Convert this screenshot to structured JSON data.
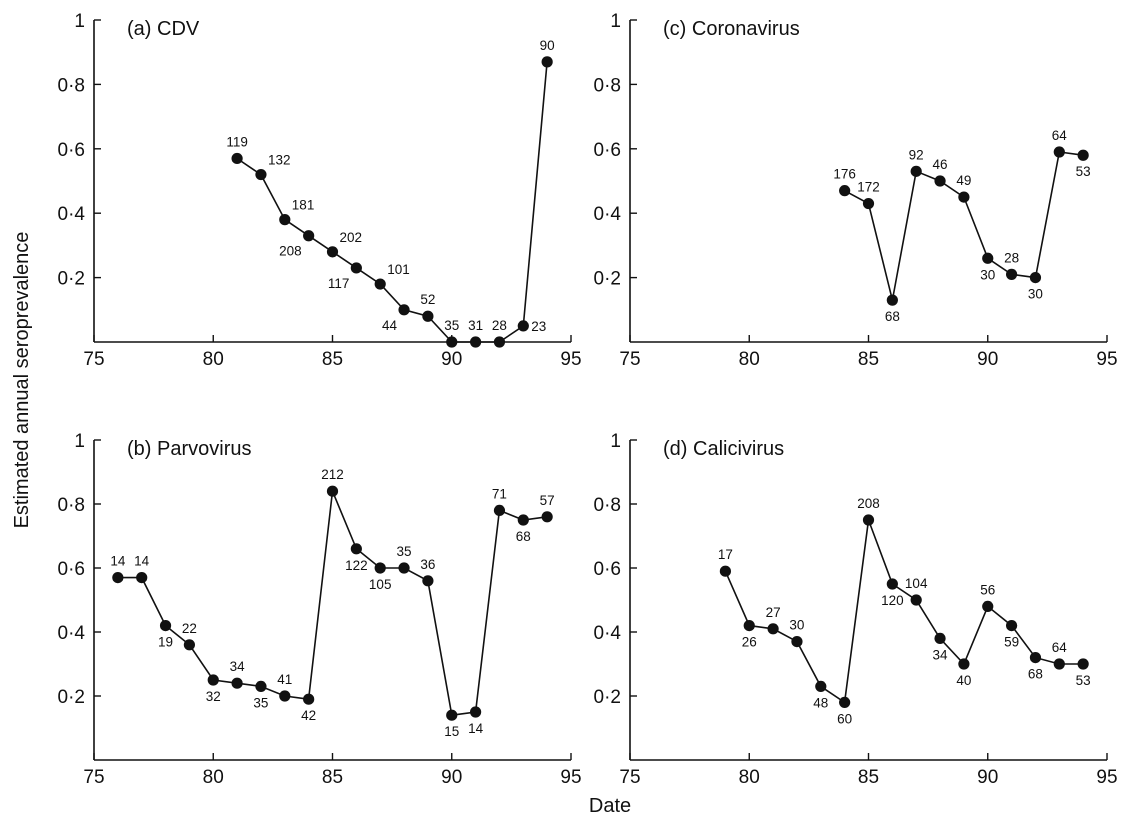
{
  "figure": {
    "ylabel": "Estimated annual seroprevalence",
    "xlabel": "Date"
  },
  "chart_data": [
    {
      "type": "line",
      "title": "(a) CDV",
      "xlim": [
        75,
        95
      ],
      "ylim": [
        0,
        1
      ],
      "x_ticks": [
        75,
        80,
        85,
        90,
        95
      ],
      "y_ticks": [
        0.2,
        0.4,
        0.6,
        0.8,
        1
      ],
      "y_tick_labels": [
        "0·2",
        "0·4",
        "0·6",
        "0·8",
        "1"
      ],
      "x": [
        81,
        82,
        83,
        84,
        85,
        86,
        87,
        88,
        89,
        90,
        91,
        92,
        93,
        94
      ],
      "y": [
        0.57,
        0.52,
        0.38,
        0.33,
        0.28,
        0.23,
        0.18,
        0.1,
        0.08,
        0.0,
        0.0,
        0.0,
        0.05,
        0.87
      ],
      "point_labels": [
        "119",
        "132",
        "181",
        "208",
        "202",
        "117",
        "101",
        "44",
        "52",
        "35",
        "31",
        "28",
        "23",
        "90"
      ],
      "label_pos": [
        "above",
        "above-right",
        "above-right",
        "below-left",
        "above-right",
        "below-left",
        "above-right",
        "below-left",
        "above",
        "above",
        "above",
        "above",
        "right",
        "above"
      ]
    },
    {
      "type": "line",
      "title": "(b) Parvovirus",
      "xlim": [
        75,
        95
      ],
      "ylim": [
        0,
        1
      ],
      "x_ticks": [
        75,
        80,
        85,
        90,
        95
      ],
      "y_ticks": [
        0.2,
        0.4,
        0.6,
        0.8,
        1
      ],
      "y_tick_labels": [
        "0·2",
        "0·4",
        "0·6",
        "0·8",
        "1"
      ],
      "x": [
        76,
        77,
        78,
        79,
        80,
        81,
        82,
        83,
        84,
        85,
        86,
        87,
        88,
        89,
        90,
        91,
        92,
        93,
        94
      ],
      "y": [
        0.57,
        0.57,
        0.42,
        0.36,
        0.25,
        0.24,
        0.23,
        0.2,
        0.19,
        0.84,
        0.66,
        0.6,
        0.6,
        0.56,
        0.14,
        0.15,
        0.78,
        0.75,
        0.76
      ],
      "point_labels": [
        "14",
        "14",
        "19",
        "22",
        "32",
        "34",
        "35",
        "41",
        "42",
        "212",
        "122",
        "105",
        "35",
        "36",
        "15",
        "14",
        "71",
        "68",
        "57"
      ],
      "label_pos": [
        "above",
        "above",
        "below",
        "above",
        "below",
        "above",
        "below",
        "above",
        "below",
        "above",
        "below",
        "below",
        "above",
        "above",
        "below",
        "below",
        "above",
        "below",
        "above"
      ]
    },
    {
      "type": "line",
      "title": "(c) Coronavirus",
      "xlim": [
        75,
        95
      ],
      "ylim": [
        0,
        1
      ],
      "x_ticks": [
        75,
        80,
        85,
        90,
        95
      ],
      "y_ticks": [
        0.2,
        0.4,
        0.6,
        0.8,
        1
      ],
      "y_tick_labels": [
        "0·2",
        "0·4",
        "0·6",
        "0·8",
        "1"
      ],
      "x": [
        84,
        85,
        86,
        87,
        88,
        89,
        90,
        91,
        92,
        93,
        94
      ],
      "y": [
        0.47,
        0.43,
        0.13,
        0.53,
        0.5,
        0.45,
        0.26,
        0.21,
        0.2,
        0.59,
        0.58
      ],
      "point_labels": [
        "176",
        "172",
        "68",
        "92",
        "46",
        "49",
        "30",
        "28",
        "30",
        "64",
        "53"
      ],
      "label_pos": [
        "above",
        "above",
        "below",
        "above",
        "above",
        "above",
        "below",
        "above",
        "below",
        "above",
        "below"
      ]
    },
    {
      "type": "line",
      "title": "(d) Calicivirus",
      "xlim": [
        75,
        95
      ],
      "ylim": [
        0,
        1
      ],
      "x_ticks": [
        75,
        80,
        85,
        90,
        95
      ],
      "y_ticks": [
        0.2,
        0.4,
        0.6,
        0.8,
        1
      ],
      "y_tick_labels": [
        "0·2",
        "0·4",
        "0·6",
        "0·8",
        "1"
      ],
      "x": [
        79,
        80,
        81,
        82,
        83,
        84,
        85,
        86,
        87,
        88,
        89,
        90,
        91,
        92,
        93,
        94
      ],
      "y": [
        0.59,
        0.42,
        0.41,
        0.37,
        0.23,
        0.18,
        0.75,
        0.55,
        0.5,
        0.38,
        0.3,
        0.48,
        0.42,
        0.32,
        0.3,
        0.3
      ],
      "point_labels": [
        "17",
        "26",
        "27",
        "30",
        "48",
        "60",
        "208",
        "120",
        "104",
        "34",
        "40",
        "56",
        "59",
        "68",
        "64",
        "53"
      ],
      "label_pos": [
        "above",
        "below",
        "above",
        "above",
        "below",
        "below",
        "above",
        "below",
        "above",
        "below",
        "below",
        "above",
        "below",
        "below",
        "above",
        "below"
      ]
    }
  ]
}
